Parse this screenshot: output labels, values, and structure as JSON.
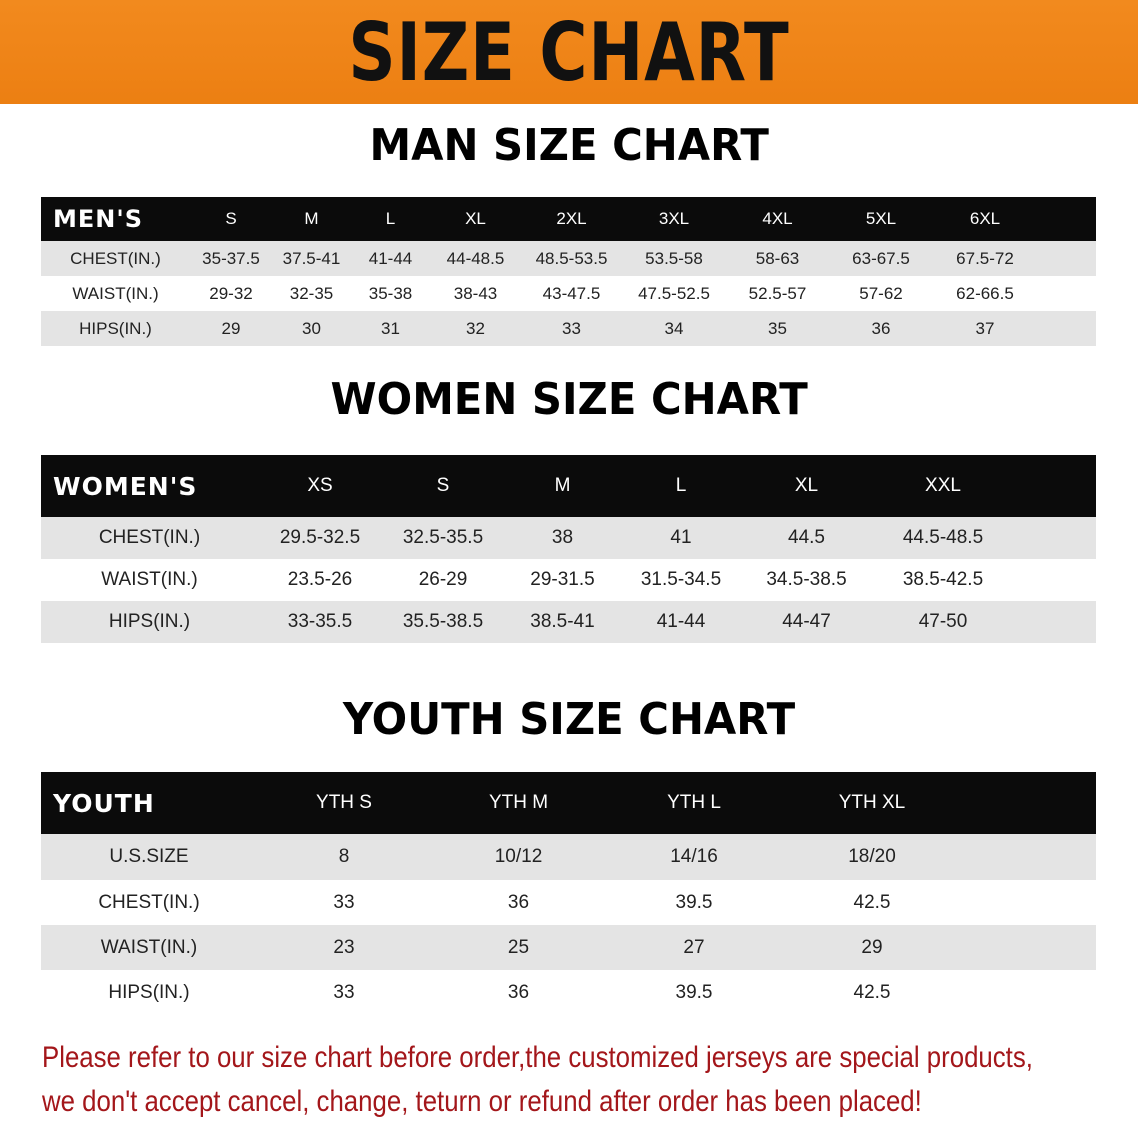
{
  "banner_title": "SIZE CHART",
  "men": {
    "title": "MAN SIZE CHART",
    "header": [
      "MEN'S",
      "S",
      "M",
      "L",
      "XL",
      "2XL",
      "3XL",
      "4XL",
      "5XL",
      "6XL"
    ],
    "rows": [
      [
        "CHEST(IN.)",
        "35-37.5",
        "37.5-41",
        "41-44",
        "44-48.5",
        "48.5-53.5",
        "53.5-58",
        "58-63",
        "63-67.5",
        "67.5-72"
      ],
      [
        "WAIST(IN.)",
        "29-32",
        "32-35",
        "35-38",
        "38-43",
        "43-47.5",
        "47.5-52.5",
        "52.5-57",
        "57-62",
        "62-66.5"
      ],
      [
        "HIPS(IN.)",
        "29",
        "30",
        "31",
        "32",
        "33",
        "34",
        "35",
        "36",
        "37"
      ]
    ]
  },
  "women": {
    "title": "WOMEN SIZE CHART",
    "header": [
      "WOMEN'S",
      "XS",
      "S",
      "M",
      "L",
      "XL",
      "XXL"
    ],
    "rows": [
      [
        "CHEST(IN.)",
        "29.5-32.5",
        "32.5-35.5",
        "38",
        "41",
        "44.5",
        "44.5-48.5"
      ],
      [
        "WAIST(IN.)",
        "23.5-26",
        "26-29",
        "29-31.5",
        "31.5-34.5",
        "34.5-38.5",
        "38.5-42.5"
      ],
      [
        "HIPS(IN.)",
        "33-35.5",
        "35.5-38.5",
        "38.5-41",
        "41-44",
        "44-47",
        "47-50"
      ]
    ]
  },
  "youth": {
    "title": "YOUTH SIZE CHART",
    "header": [
      "YOUTH",
      "YTH S",
      "YTH M",
      "YTH L",
      "YTH XL"
    ],
    "rows": [
      [
        "U.S.SIZE",
        "8",
        "10/12",
        "14/16",
        "18/20"
      ],
      [
        "CHEST(IN.)",
        "33",
        "36",
        "39.5",
        "42.5"
      ],
      [
        "WAIST(IN.)",
        "23",
        "25",
        "27",
        "29"
      ],
      [
        "HIPS(IN.)",
        "33",
        "36",
        "39.5",
        "42.5"
      ]
    ]
  },
  "notice": [
    "Please refer to our size chart before order,the customized jerseys are special products,",
    "we don't accept cancel, change, teturn or refund after order has been placed!"
  ],
  "colors": {
    "banner": "#ee8418",
    "header_row": "#0b0b0b",
    "notice_text": "#a3161a"
  }
}
